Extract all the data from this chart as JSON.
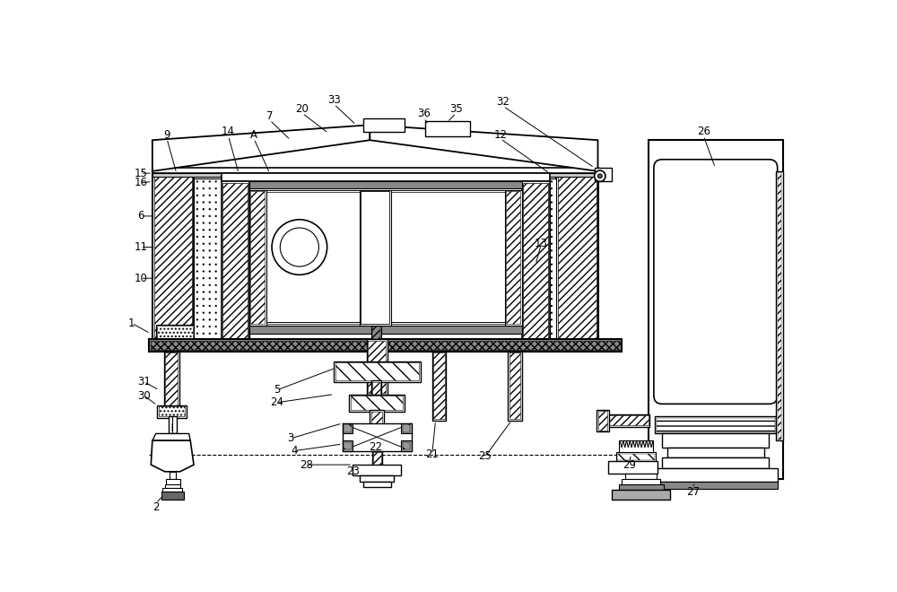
{
  "bg_color": "#ffffff",
  "lc": "#000000",
  "fs": 8.5,
  "lw_ann": 0.7
}
